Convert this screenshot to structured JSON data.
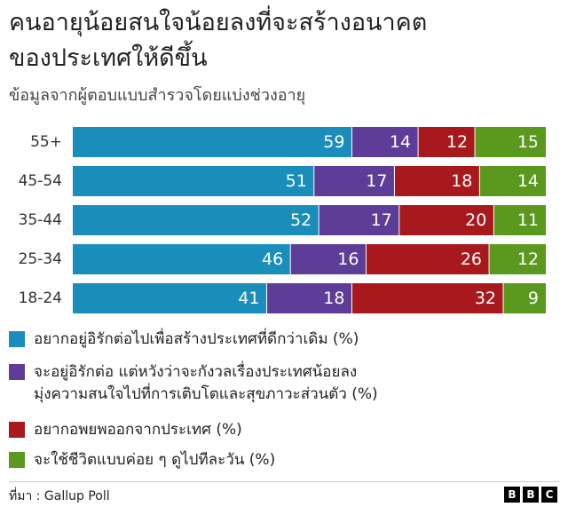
{
  "chart_data": {
    "type": "stacked-bar-horizontal",
    "title": "คนอายุน้อยสนใจน้อยลงที่จะสร้างอนาคต\nของประเทศให้ดีขึ้น",
    "subtitle": "ข้อมูลจากผู้ตอบแบบสำรวจโดยแบ่งช่วงอายุ",
    "categories": [
      "55+",
      "45-54",
      "35-44",
      "25-34",
      "18-24"
    ],
    "xlim": [
      0,
      100
    ],
    "series": [
      {
        "name": "อยากอยู่อิรักต่อไปเพื่อสร้างประเทศที่ดีกว่าเดิม (%)",
        "color": "#1a8dba",
        "values": [
          59,
          51,
          52,
          46,
          41
        ]
      },
      {
        "name": "จะอยู่อิรักต่อ แต่หวังว่าจะกังวลเรื่องประเทศน้อยลง\nมุ่งความสนใจไปที่การเติบโตและสุขภาวะส่วนตัว (%)",
        "color": "#5d3d97",
        "values": [
          14,
          17,
          17,
          16,
          18
        ]
      },
      {
        "name": "อยากอพยพออกจากประเทศ (%)",
        "color": "#a8191d",
        "values": [
          12,
          18,
          20,
          26,
          32
        ]
      },
      {
        "name": "จะใช้ชีวิตแบบค่อย ๆ ดูไปทีละวัน (%)",
        "color": "#5a991e",
        "values": [
          15,
          14,
          11,
          12,
          9
        ]
      }
    ],
    "source": "ที่มา : Gallup Poll",
    "logo": [
      "B",
      "B",
      "C"
    ]
  }
}
